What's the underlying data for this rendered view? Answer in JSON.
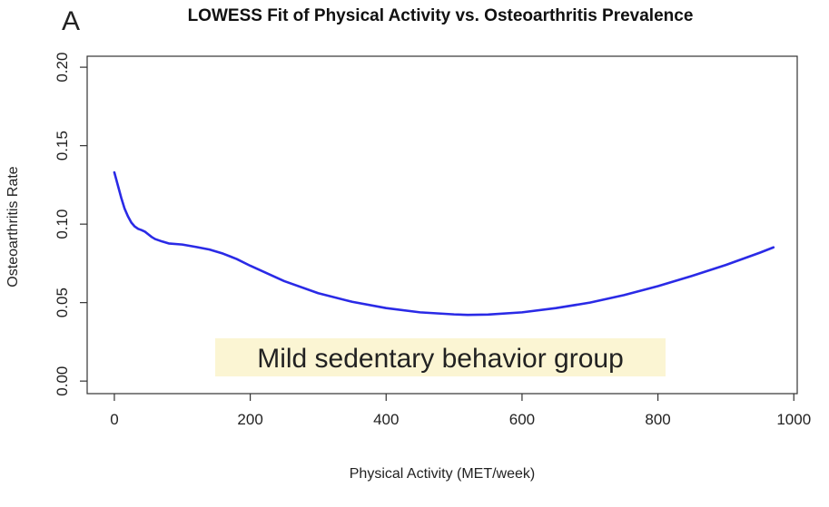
{
  "panel_label": "A",
  "chart_data": {
    "type": "line",
    "title": "LOWESS Fit of Physical Activity vs. Osteoarthritis Prevalence",
    "xlabel": "Physical Activity (MET/week)",
    "ylabel": "Osteoarthritis Rate",
    "xlim": [
      -40,
      1005
    ],
    "ylim": [
      -0.008,
      0.207
    ],
    "x_ticks": [
      0,
      200,
      400,
      600,
      800,
      1000
    ],
    "x_tick_labels": [
      "0",
      "200",
      "400",
      "600",
      "800",
      "1000"
    ],
    "y_ticks": [
      0.0,
      0.05,
      0.1,
      0.15,
      0.2
    ],
    "y_tick_labels": [
      "0.00",
      "0.05",
      "0.10",
      "0.15",
      "0.20"
    ],
    "grid": false,
    "series": [
      {
        "color": "#2a2ae6",
        "x": [
          0,
          5,
          10,
          15,
          20,
          25,
          30,
          35,
          40,
          45,
          50,
          55,
          60,
          70,
          80,
          100,
          120,
          140,
          160,
          180,
          200,
          250,
          300,
          350,
          400,
          450,
          500,
          520,
          550,
          600,
          650,
          700,
          750,
          800,
          850,
          900,
          950,
          970
        ],
        "y": [
          0.133,
          0.125,
          0.117,
          0.11,
          0.105,
          0.101,
          0.0985,
          0.097,
          0.0962,
          0.0952,
          0.0935,
          0.0918,
          0.0905,
          0.089,
          0.0877,
          0.087,
          0.0855,
          0.0838,
          0.0812,
          0.0778,
          0.0735,
          0.0637,
          0.056,
          0.0505,
          0.0465,
          0.0438,
          0.0425,
          0.0422,
          0.0424,
          0.0438,
          0.0465,
          0.05,
          0.0548,
          0.0605,
          0.067,
          0.074,
          0.0818,
          0.0852
        ]
      }
    ],
    "annotation": {
      "text": "Mild sedentary behavior group",
      "highlight_color": "#fbf5d3"
    }
  }
}
